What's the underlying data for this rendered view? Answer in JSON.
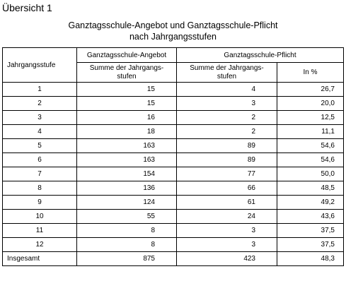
{
  "heading": "Übersicht 1",
  "title_line1": "Ganztagsschule-Angebot und Ganztagsschule-Pflicht",
  "title_line2": "nach Jahrgangsstufen",
  "table": {
    "col_label": "Jahrgangsstufe",
    "group_angebot": "Ganztagsschule-Angebot",
    "group_pflicht": "Ganztagsschule-Pflicht",
    "sub_angebot_summe": "Summe der Jahrgangs-stufen",
    "sub_pflicht_summe": "Summe der Jahrgangs-stufen",
    "sub_pflicht_pct": "In %",
    "rows": [
      {
        "stufe": "1",
        "angebot": "15",
        "pflicht": "4",
        "pct": "26,7"
      },
      {
        "stufe": "2",
        "angebot": "15",
        "pflicht": "3",
        "pct": "20,0"
      },
      {
        "stufe": "3",
        "angebot": "16",
        "pflicht": "2",
        "pct": "12,5"
      },
      {
        "stufe": "4",
        "angebot": "18",
        "pflicht": "2",
        "pct": "11,1"
      },
      {
        "stufe": "5",
        "angebot": "163",
        "pflicht": "89",
        "pct": "54,6"
      },
      {
        "stufe": "6",
        "angebot": "163",
        "pflicht": "89",
        "pct": "54,6"
      },
      {
        "stufe": "7",
        "angebot": "154",
        "pflicht": "77",
        "pct": "50,0"
      },
      {
        "stufe": "8",
        "angebot": "136",
        "pflicht": "66",
        "pct": "48,5"
      },
      {
        "stufe": "9",
        "angebot": "124",
        "pflicht": "61",
        "pct": "49,2"
      },
      {
        "stufe": "10",
        "angebot": "55",
        "pflicht": "24",
        "pct": "43,6"
      },
      {
        "stufe": "11",
        "angebot": "8",
        "pflicht": "3",
        "pct": "37,5"
      },
      {
        "stufe": "12",
        "angebot": "8",
        "pflicht": "3",
        "pct": "37,5"
      }
    ],
    "total": {
      "label": "Insgesamt",
      "angebot": "875",
      "pflicht": "423",
      "pct": "48,3"
    }
  }
}
